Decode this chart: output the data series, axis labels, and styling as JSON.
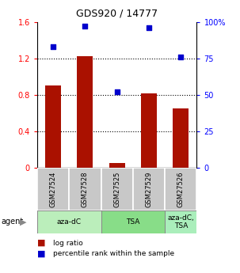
{
  "title": "GDS920 / 14777",
  "samples": [
    "GSM27524",
    "GSM27528",
    "GSM27525",
    "GSM27529",
    "GSM27526"
  ],
  "log_ratio": [
    0.9,
    1.22,
    0.05,
    0.82,
    0.65
  ],
  "percentile": [
    83,
    97,
    52,
    96,
    76
  ],
  "bar_color": "#aa1100",
  "dot_color": "#0000cc",
  "ylim_left": [
    0,
    1.6
  ],
  "ylim_right": [
    0,
    100
  ],
  "yticks_left": [
    0,
    0.4,
    0.8,
    1.2,
    1.6
  ],
  "ytick_labels_left": [
    "0",
    "0.4",
    "0.8",
    "1.2",
    "1.6"
  ],
  "ytick_labels_right": [
    "0",
    "25",
    "50",
    "75",
    "100%"
  ],
  "yticks_right": [
    0,
    25,
    50,
    75,
    100
  ],
  "groups": [
    {
      "label": "aza-dC",
      "indices": [
        0,
        1
      ],
      "color": "#bbeebb"
    },
    {
      "label": "TSA",
      "indices": [
        2,
        3
      ],
      "color": "#88dd88"
    },
    {
      "label": "aza-dC,\nTSA",
      "indices": [
        4
      ],
      "color": "#aaeebb"
    }
  ],
  "legend": [
    {
      "label": "log ratio",
      "color": "#aa1100"
    },
    {
      "label": "percentile rank within the sample",
      "color": "#0000cc"
    }
  ],
  "bar_width": 0.5,
  "grid_yticks": [
    0.4,
    0.8,
    1.2
  ]
}
